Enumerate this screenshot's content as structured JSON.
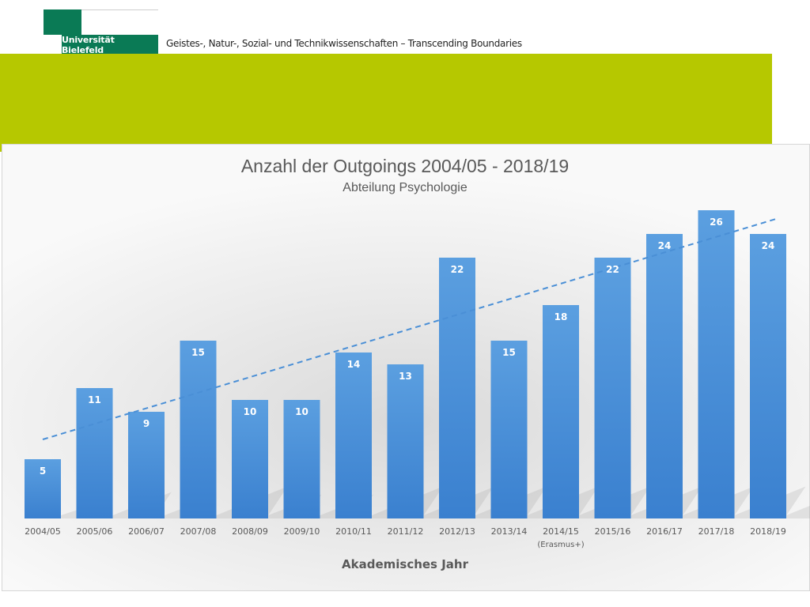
{
  "header": {
    "logo_text": "Universität Bielefeld",
    "tagline": "Geistes-, Natur-, Sozial- und Technikwissenschaften – Transcending Boundaries",
    "brand_green": "#0a7a55",
    "band_color": "#b6c800"
  },
  "chart_data": {
    "type": "bar",
    "title": "Anzahl der Outgoings 2004/05 - 2018/19",
    "subtitle": "Abteilung Psychologie",
    "xlabel": "Akademisches Jahr",
    "ylabel": "",
    "categories": [
      "2004/05",
      "2005/06",
      "2006/07",
      "2007/08",
      "2008/09",
      "2009/10",
      "2010/11",
      "2011/12",
      "2012/13",
      "2013/14",
      "2014/15",
      "2015/16",
      "2016/17",
      "2017/18",
      "2018/19"
    ],
    "category_notes": [
      "",
      "",
      "",
      "",
      "",
      "",
      "",
      "",
      "",
      "",
      "(Erasmus+)",
      "",
      "",
      "",
      ""
    ],
    "values": [
      5,
      11,
      9,
      15,
      10,
      10,
      14,
      13,
      22,
      15,
      18,
      22,
      24,
      26,
      24
    ],
    "trendline": {
      "type": "linear",
      "style": "dashed"
    },
    "ylim": [
      0,
      27
    ],
    "grid": false,
    "legend": "none",
    "bar_color": "#4a90d9",
    "trend_color": "#4a8fd6"
  }
}
